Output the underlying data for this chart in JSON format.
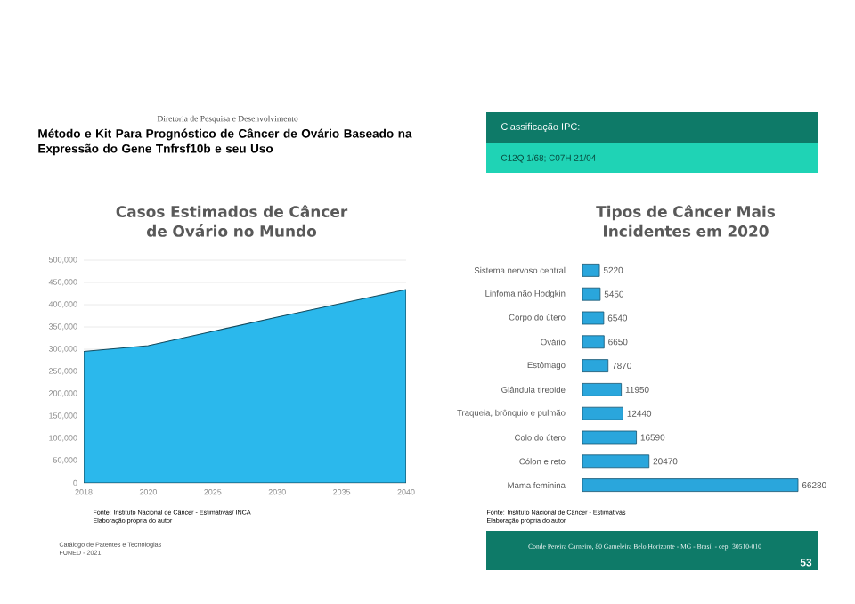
{
  "chart_data": [
    {
      "type": "area",
      "title": "Casos Estimados de Câncer de Ovário no Mundo",
      "categories": [
        "2018",
        "2020",
        "2025",
        "2030",
        "2035",
        "2040"
      ],
      "values": [
        295000,
        308000,
        340000,
        372000,
        403000,
        434000
      ],
      "color": "#2bb8ec",
      "ylim": [
        0,
        500000
      ],
      "yticks": [
        0,
        {
          "value": 50000,
          "label": "50,000"
        },
        {
          "value": 100000,
          "label": "100,000"
        },
        {
          "value": 150000,
          "label": "150,000"
        },
        {
          "value": 200000,
          "label": "200,000"
        },
        {
          "value": 250000,
          "label": "250,000"
        },
        {
          "value": 300000,
          "label": "300,000"
        },
        {
          "value": 350000,
          "label": "350,000"
        },
        {
          "value": 400000,
          "label": "400,000"
        },
        {
          "value": 450000,
          "label": "450,000"
        },
        {
          "value": 500000,
          "label": "500,000"
        }
      ],
      "grid": "y",
      "annotations": [
        "Diretoria de Pesquisa e Desenvolvimento",
        "Método e Kit Para Prognóstico de Câncer de Ovário Baseado na Expressão do Gene Tnfrsf10b e seu Uso",
        "Classificação IPC:",
        "C12Q 1/68; C07H 21/04",
        "Fonte: Instituto Nacional de Câncer - Estimativas/ INCA",
        "Elaboração própria do autor",
        "Catálogo de Patentes e Tecnologias",
        "FUNED - 2021",
        "Conde Pereira Carneiro, 80 Gameleira Belo Horizonte - MG - Brasil - cep: 30510-010",
        "53"
      ]
    },
    {
      "type": "bar",
      "orientation": "horizontal",
      "title": "Tipos de Câncer Mais Incidentes em 2020",
      "categories": [
        "Sistema nervoso central",
        "Linfoma não Hodgkin",
        "Corpo do útero",
        "Ovário",
        "Estômago",
        "Glândula tireoide",
        "Traqueia, brônquio e pulmão",
        "Colo do útero",
        "Cólon e reto",
        "Mama feminina"
      ],
      "values": [
        5220,
        5450,
        6540,
        6650,
        7870,
        11950,
        12440,
        16590,
        20470,
        66280
      ],
      "color": "#2aa6dc",
      "data_labels": true,
      "annotations": [
        "Fonte: Instituto Nacional de Câncer - Estimativas",
        "Elaboração própria do autor"
      ]
    }
  ]
}
